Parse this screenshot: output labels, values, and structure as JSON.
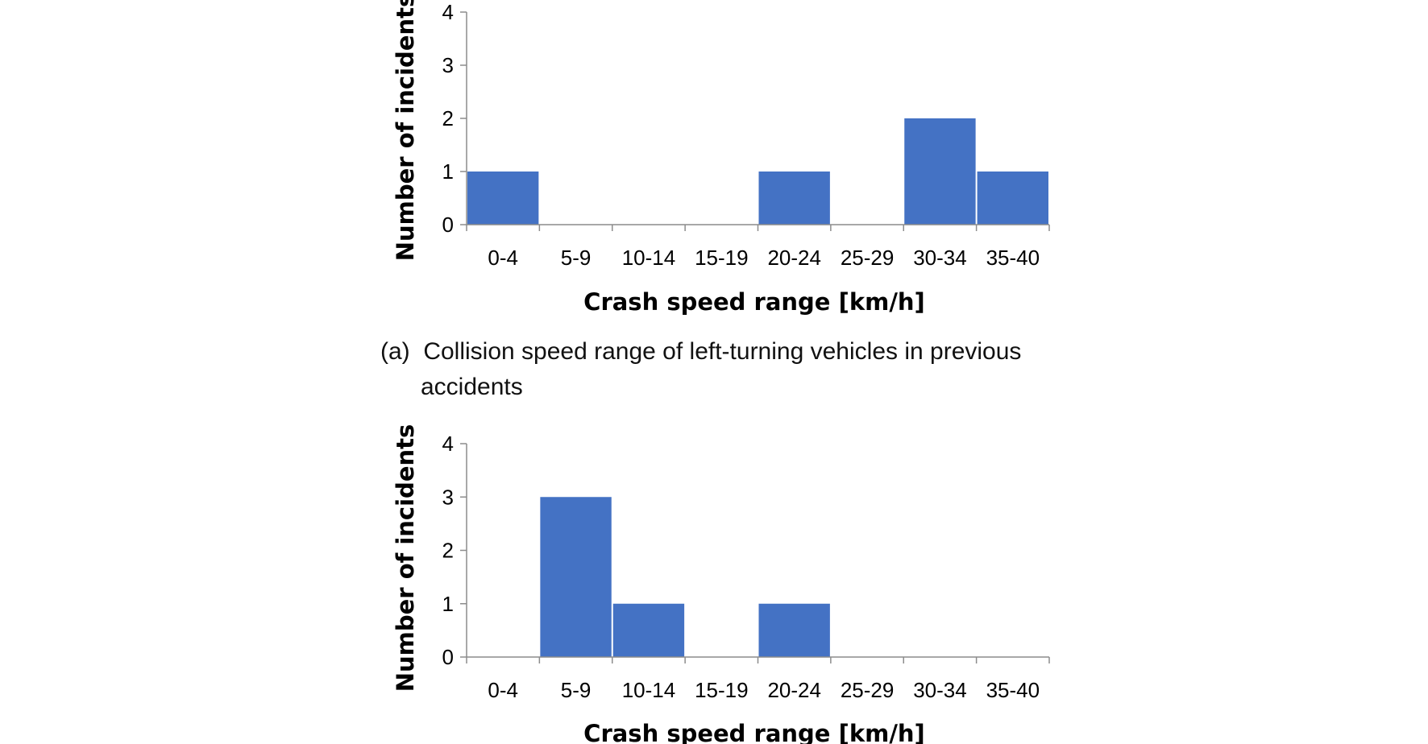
{
  "chart_data": [
    {
      "type": "bar",
      "categories": [
        "0-4",
        "5-9",
        "10-14",
        "15-19",
        "20-24",
        "25-29",
        "30-34",
        "35-40"
      ],
      "values": [
        1,
        0,
        0,
        0,
        1,
        0,
        2,
        1
      ],
      "xlabel": "Crash speed range [km/h]",
      "ylabel": "Number of incidents",
      "yticks": [
        "0",
        "1",
        "2",
        "3",
        "4"
      ],
      "ylim": [
        0,
        4
      ],
      "grid": false,
      "color": "#4472C4",
      "caption": {
        "line1": "(a)  Collision speed range of left-turning vehicles in previous",
        "line2": "accidents"
      }
    },
    {
      "type": "bar",
      "categories": [
        "0-4",
        "5-9",
        "10-14",
        "15-19",
        "20-24",
        "25-29",
        "30-34",
        "35-40"
      ],
      "values": [
        0,
        3,
        1,
        0,
        1,
        0,
        0,
        0
      ],
      "xlabel": "Crash speed range [km/h]",
      "ylabel": "Number of incidents",
      "yticks": [
        "0",
        "1",
        "2",
        "3",
        "4"
      ],
      "ylim": [
        0,
        4
      ],
      "grid": false,
      "color": "#4472C4"
    }
  ]
}
